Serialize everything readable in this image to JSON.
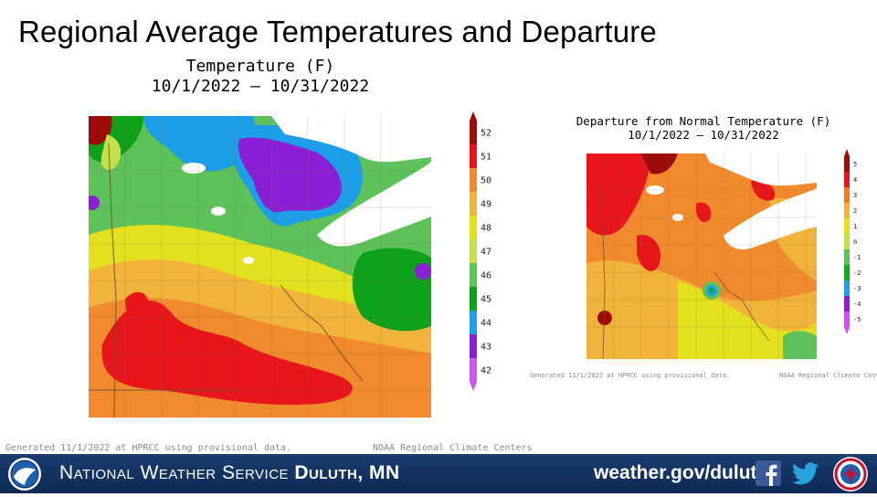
{
  "slide": {
    "title": "Regional Average Temperatures and Departure"
  },
  "temperature_map": {
    "title_line1": "Temperature (F)",
    "title_line2": "10/1/2022 – 10/31/2022",
    "legend_values": [
      "52",
      "51",
      "50",
      "49",
      "48",
      "47",
      "46",
      "45",
      "44",
      "43",
      "42"
    ],
    "legend_colors": [
      "#9e0b0b",
      "#e8151b",
      "#f08a2c",
      "#f2b33a",
      "#e3e01d",
      "#c6e04a",
      "#5dc25a",
      "#0fa01a",
      "#1c9ee8",
      "#8a1fd6",
      "#c95af0"
    ],
    "credit_left": "Generated 11/1/2022 at HPRCC using provisional data.",
    "credit_right": "NOAA Regional Climate Centers"
  },
  "departure_map": {
    "title_line1": "Departure from Normal Temperature (F)",
    "title_line2": "10/1/2022 – 10/31/2022",
    "legend_values": [
      "5",
      "4",
      "3",
      "2",
      "1",
      "0",
      "-1",
      "-2",
      "-3",
      "-4",
      "-5"
    ],
    "legend_colors": [
      "#9e0b0b",
      "#e8151b",
      "#f07a2a",
      "#f2b33a",
      "#e3e01d",
      "#c6e04a",
      "#5dc25a",
      "#12a820",
      "#1c9ee8",
      "#8a1fd6",
      "#d24ef5"
    ],
    "credit_left": "Generated 11/1/2022 at HPRCC using provisional data.",
    "credit_right": "NOAA Regional Climate Centers"
  },
  "footer": {
    "org_prefix": "National Weather Service",
    "office": "Duluth, MN",
    "website": "weather.gov/duluth",
    "icons": [
      "noaa-logo-icon",
      "facebook-icon",
      "twitter-icon",
      "nws-logo-icon"
    ]
  }
}
